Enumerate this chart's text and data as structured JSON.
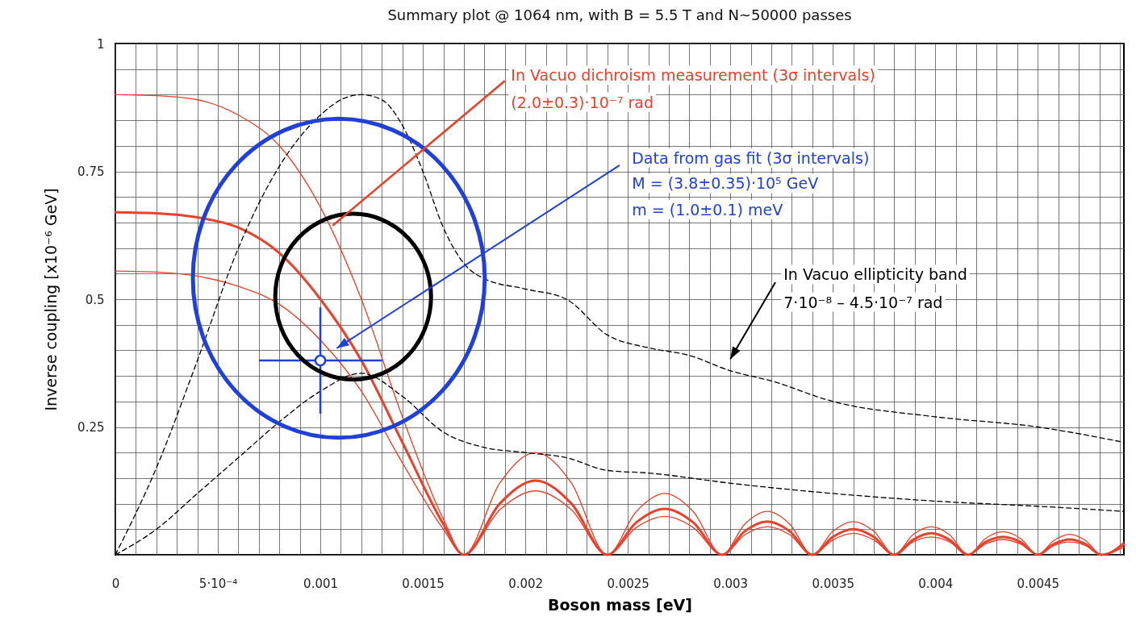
{
  "chart_data": {
    "type": "line",
    "title": "Summary plot @ 1064 nm, with B = 5.5 T and N~50000 passes",
    "xlabel": "Boson mass [eV]",
    "ylabel": "Inverse coupling [x10⁻⁶ GeV]",
    "x": [
      0,
      0.0002,
      0.0004,
      0.0006,
      0.0008,
      0.001,
      0.0012,
      0.0014,
      0.0016,
      0.0017,
      0.001875,
      0.00205,
      0.002225,
      0.0024,
      0.00254,
      0.00268,
      0.00282,
      0.00296,
      0.00307,
      0.00318,
      0.00329,
      0.0034,
      0.0035,
      0.0036,
      0.0037,
      0.0038,
      0.00389,
      0.00398,
      0.00407,
      0.00416,
      0.004245,
      0.00433,
      0.004415,
      0.0045,
      0.004578,
      0.004655,
      0.004733,
      0.00481,
      0.00492
    ],
    "series": [
      {
        "color": "#e8412c",
        "values": [
          0.9,
          0.898,
          0.89,
          0.86,
          0.8,
          0.68,
          0.5,
          0.27,
          0.07,
          0,
          0.14,
          0.2,
          0.14,
          0,
          0.084,
          0.12,
          0.084,
          0,
          0.06,
          0.085,
          0.06,
          0,
          0.046,
          0.065,
          0.046,
          0,
          0.039,
          0.055,
          0.039,
          0,
          0.032,
          0.045,
          0.032,
          0,
          0.028,
          0.04,
          0.028,
          0,
          0.025
        ]
      },
      {
        "color": "#e8412c",
        "values": [
          0.67,
          0.668,
          0.66,
          0.64,
          0.59,
          0.5,
          0.38,
          0.22,
          0.06,
          0,
          0.1,
          0.145,
          0.1,
          0,
          0.063,
          0.09,
          0.063,
          0,
          0.046,
          0.065,
          0.046,
          0,
          0.035,
          0.05,
          0.035,
          0,
          0.029,
          0.042,
          0.029,
          0,
          0.025,
          0.035,
          0.025,
          0,
          0.021,
          0.03,
          0.021,
          0,
          0.02
        ]
      },
      {
        "color": "#e8412c",
        "values": [
          0.555,
          0.553,
          0.545,
          0.525,
          0.49,
          0.42,
          0.32,
          0.18,
          0.05,
          0,
          0.088,
          0.125,
          0.088,
          0,
          0.053,
          0.075,
          0.053,
          0,
          0.039,
          0.055,
          0.039,
          0,
          0.029,
          0.042,
          0.029,
          0,
          0.025,
          0.035,
          0.025,
          0,
          0.021,
          0.03,
          0.021,
          0,
          0.018,
          0.025,
          0.018,
          0,
          0.015
        ]
      },
      {
        "color": "#000000",
        "line_style": "dashed",
        "x": [
          0,
          0.0002,
          0.0004,
          0.0006,
          0.0008,
          0.001,
          0.0011,
          0.0012,
          0.0013,
          0.0014,
          0.0015,
          0.0016,
          0.0017,
          0.0018,
          0.002,
          0.0022,
          0.0024,
          0.0026,
          0.0028,
          0.003,
          0.0032,
          0.0035,
          0.004,
          0.0045,
          0.00492
        ],
        "values": [
          0,
          0.17,
          0.38,
          0.6,
          0.76,
          0.86,
          0.89,
          0.9,
          0.89,
          0.84,
          0.75,
          0.64,
          0.57,
          0.54,
          0.52,
          0.5,
          0.43,
          0.405,
          0.39,
          0.36,
          0.34,
          0.3,
          0.27,
          0.25,
          0.22
        ]
      },
      {
        "color": "#000000",
        "line_style": "dashed",
        "x": [
          0,
          0.0002,
          0.0004,
          0.0006,
          0.0008,
          0.001,
          0.0012,
          0.0014,
          0.0016,
          0.0018,
          0.002,
          0.0022,
          0.0024,
          0.0026,
          0.003,
          0.0035,
          0.004,
          0.0045,
          0.00492
        ],
        "values": [
          0,
          0.05,
          0.12,
          0.19,
          0.26,
          0.32,
          0.355,
          0.31,
          0.24,
          0.21,
          0.2,
          0.19,
          0.165,
          0.16,
          0.14,
          0.12,
          0.105,
          0.095,
          0.085
        ]
      },
      {
        "type": "scatter",
        "color": "#2140d8",
        "marker": "circle",
        "x": [
          0.001
        ],
        "values": [
          0.38
        ],
        "errors": [
          [
            0.276,
            0.484
          ]
        ],
        "xerrors": [
          [
            0.0007,
            0.0013
          ]
        ]
      }
    ],
    "annotations": [
      {
        "text": "In Vacuo dichroism measurement (3σ intervals)",
        "x": 0.00106,
        "y": 0.644
      },
      "(2.0±0.3)·10⁻⁷ rad",
      "Data from gas fit (3σ intervals)",
      "M = (3.8±0.35)·10⁵ GeV",
      "m = (1.0±0.1) meV",
      "In Vacuo ellipticity band",
      "7·10⁻⁸ – 4.5·10⁻⁷ rad"
    ],
    "xlim": [
      0,
      0.00492
    ],
    "ylim": [
      0,
      1
    ],
    "xticks": [
      0,
      {
        "value": 0.0001,
        "label": null
      },
      {
        "value": 0.0002,
        "label": null
      },
      {
        "value": 0.0003,
        "label": null
      },
      {
        "value": 0.0004,
        "label": null
      },
      {
        "value": 0.0005,
        "label": "5·10⁻⁴"
      },
      {
        "value": 0.0006,
        "label": null
      },
      {
        "value": 0.0007,
        "label": null
      },
      {
        "value": 0.0008,
        "label": null
      },
      {
        "value": 0.0009,
        "label": null
      },
      0.001,
      {
        "value": 0.0011,
        "label": null
      },
      {
        "value": 0.0012,
        "label": null
      },
      {
        "value": 0.0013,
        "label": null
      },
      {
        "value": 0.0014,
        "label": null
      },
      0.0015,
      {
        "value": 0.0016,
        "label": null
      },
      {
        "value": 0.0017,
        "label": null
      },
      {
        "value": 0.0018,
        "label": null
      },
      {
        "value": 0.0019,
        "label": null
      },
      0.002,
      {
        "value": 0.0021,
        "label": null
      },
      {
        "value": 0.0022,
        "label": null
      },
      {
        "value": 0.0023,
        "label": null
      },
      {
        "value": 0.0024,
        "label": null
      },
      0.0025,
      {
        "value": 0.0026,
        "label": null
      },
      {
        "value": 0.0027,
        "label": null
      },
      {
        "value": 0.0028,
        "label": null
      },
      {
        "value": 0.0029,
        "label": null
      },
      0.003,
      {
        "value": 0.0031,
        "label": null
      },
      {
        "value": 0.0032,
        "label": null
      },
      {
        "value": 0.0033,
        "label": null
      },
      {
        "value": 0.0034,
        "label": null
      },
      0.0035,
      {
        "value": 0.0036,
        "label": null
      },
      {
        "value": 0.0037,
        "label": null
      },
      {
        "value": 0.0038,
        "label": null
      },
      {
        "value": 0.0039,
        "label": null
      },
      0.004,
      {
        "value": 0.0041,
        "label": null
      },
      {
        "value": 0.0042,
        "label": null
      },
      {
        "value": 0.0043,
        "label": null
      },
      {
        "value": 0.0044,
        "label": null
      },
      0.0045,
      {
        "value": 0.0046,
        "label": null
      },
      {
        "value": 0.0047,
        "label": null
      },
      {
        "value": 0.0048,
        "label": null
      },
      {
        "value": 0.0049,
        "label": null
      }
    ],
    "yticks": [
      {
        "value": 0,
        "label": null
      },
      {
        "value": 0.05,
        "label": null
      },
      {
        "value": 0.1,
        "label": null
      },
      {
        "value": 0.15,
        "label": null
      },
      {
        "value": 0.2,
        "label": null
      },
      0.25,
      {
        "value": 0.3,
        "label": null
      },
      {
        "value": 0.35,
        "label": null
      },
      {
        "value": 0.4,
        "label": null
      },
      {
        "value": 0.45,
        "label": null
      },
      0.5,
      {
        "value": 0.55,
        "label": null
      },
      {
        "value": 0.6,
        "label": null
      },
      {
        "value": 0.65,
        "label": null
      },
      {
        "value": 0.7,
        "label": null
      },
      0.75,
      {
        "value": 0.8,
        "label": null
      },
      {
        "value": 0.85,
        "label": null
      },
      {
        "value": 0.9,
        "label": null
      },
      {
        "value": 0.95,
        "label": null
      },
      1
    ],
    "grid": true
  }
}
